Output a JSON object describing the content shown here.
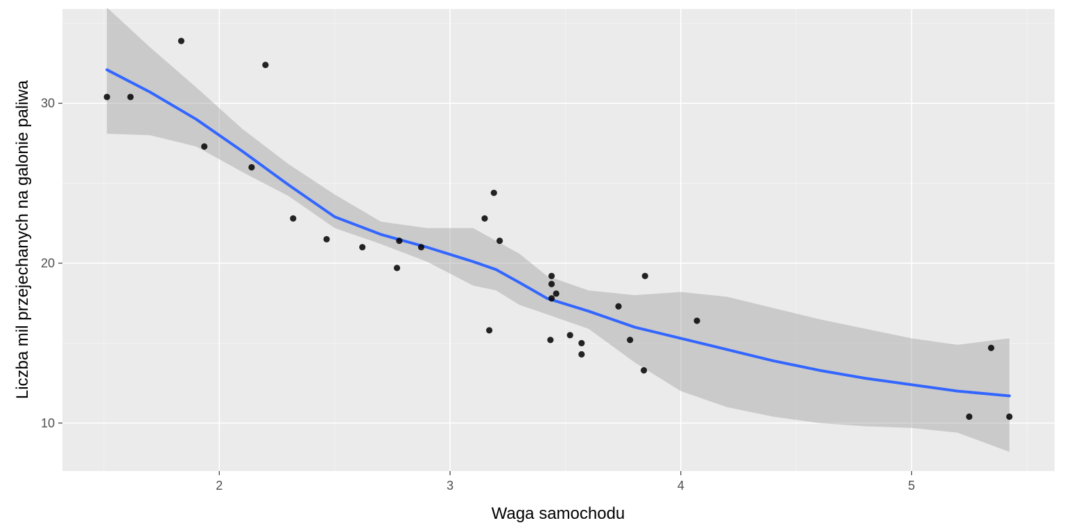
{
  "chart_data": {
    "type": "scatter",
    "title": "",
    "xlabel": "Waga samochodu",
    "ylabel": "Liczba mil przejechanych na galonie paliwa",
    "xlim": [
      1.32,
      5.62
    ],
    "ylim": [
      7.0,
      35.9
    ],
    "x_ticks": [
      2,
      3,
      4,
      5
    ],
    "x_tick_labels": [
      "2",
      "3",
      "4",
      "5"
    ],
    "y_ticks": [
      10,
      20,
      30
    ],
    "y_tick_labels": [
      "10",
      "20",
      "30"
    ],
    "x_minor_ticks": [
      1.5,
      2.5,
      3.5,
      4.5,
      5.5
    ],
    "y_minor_ticks": [
      15,
      25,
      35
    ],
    "grid": true,
    "points": [
      {
        "x": 1.513,
        "y": 30.4
      },
      {
        "x": 1.615,
        "y": 30.4
      },
      {
        "x": 1.835,
        "y": 33.9
      },
      {
        "x": 1.935,
        "y": 27.3
      },
      {
        "x": 2.14,
        "y": 26.0
      },
      {
        "x": 2.2,
        "y": 32.4
      },
      {
        "x": 2.32,
        "y": 22.8
      },
      {
        "x": 2.465,
        "y": 21.5
      },
      {
        "x": 2.62,
        "y": 21.0
      },
      {
        "x": 2.77,
        "y": 19.7
      },
      {
        "x": 2.78,
        "y": 21.4
      },
      {
        "x": 2.875,
        "y": 21.0
      },
      {
        "x": 3.15,
        "y": 22.8
      },
      {
        "x": 3.17,
        "y": 15.8
      },
      {
        "x": 3.19,
        "y": 24.4
      },
      {
        "x": 3.215,
        "y": 21.4
      },
      {
        "x": 3.435,
        "y": 15.2
      },
      {
        "x": 3.44,
        "y": 18.7
      },
      {
        "x": 3.44,
        "y": 19.2
      },
      {
        "x": 3.44,
        "y": 17.8
      },
      {
        "x": 3.46,
        "y": 18.1
      },
      {
        "x": 3.52,
        "y": 15.5
      },
      {
        "x": 3.57,
        "y": 14.3
      },
      {
        "x": 3.57,
        "y": 15.0
      },
      {
        "x": 3.73,
        "y": 17.3
      },
      {
        "x": 3.78,
        "y": 15.2
      },
      {
        "x": 3.84,
        "y": 13.3
      },
      {
        "x": 3.845,
        "y": 19.2
      },
      {
        "x": 4.07,
        "y": 16.4
      },
      {
        "x": 5.25,
        "y": 10.4
      },
      {
        "x": 5.345,
        "y": 14.7
      },
      {
        "x": 5.424,
        "y": 10.4
      }
    ],
    "smooth": {
      "color": "#3366ff",
      "band_color": "#999999",
      "x": [
        1.513,
        1.7,
        1.9,
        2.1,
        2.3,
        2.5,
        2.7,
        2.9,
        3.1,
        3.2,
        3.3,
        3.42,
        3.6,
        3.8,
        4.0,
        4.2,
        4.4,
        4.6,
        4.8,
        5.0,
        5.2,
        5.424
      ],
      "y": [
        32.1,
        30.7,
        29.0,
        27.0,
        24.9,
        22.9,
        21.8,
        21.0,
        20.1,
        19.6,
        18.8,
        17.8,
        17.0,
        16.0,
        15.3,
        14.6,
        13.9,
        13.3,
        12.8,
        12.4,
        12.0,
        11.7
      ],
      "lower": [
        28.1,
        28.0,
        27.3,
        25.7,
        24.2,
        22.2,
        21.2,
        20.1,
        18.6,
        18.3,
        17.4,
        16.8,
        15.9,
        13.8,
        12.0,
        11.0,
        10.4,
        10.0,
        9.8,
        9.7,
        9.4,
        8.2
      ],
      "upper": [
        36.0,
        33.5,
        31.0,
        28.4,
        26.2,
        24.3,
        22.6,
        22.2,
        22.2,
        21.4,
        20.6,
        19.2,
        18.3,
        18.0,
        18.2,
        17.9,
        17.2,
        16.5,
        15.9,
        15.3,
        14.9,
        15.3
      ]
    }
  }
}
